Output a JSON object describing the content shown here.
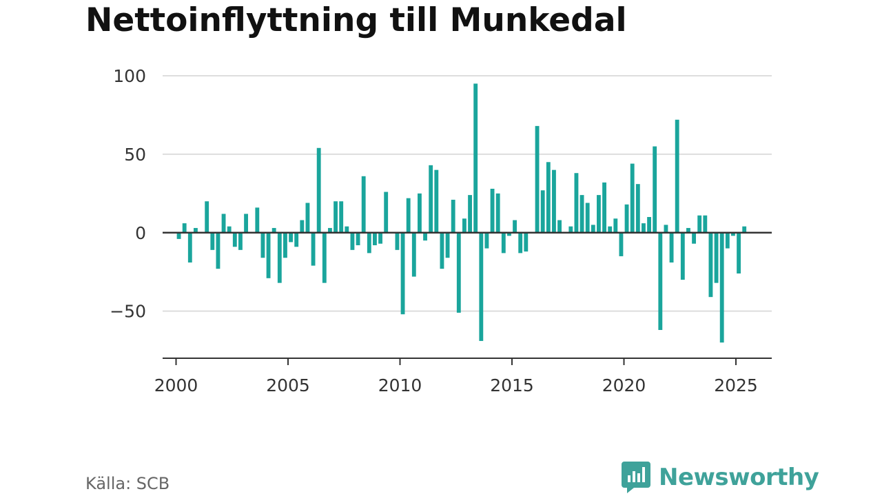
{
  "title": "Nettoinflyttning till Munkedal",
  "source": "Källa: SCB",
  "brand": {
    "name": "Newsworthy",
    "color": "#3fa29a"
  },
  "colors": {
    "bar": "#1aa59c",
    "grid": "#dddddd",
    "axis": "#333333",
    "text": "#333333"
  },
  "chart_data": {
    "type": "bar",
    "title": "Nettoinflyttning till Munkedal",
    "xlabel": "",
    "ylabel": "",
    "ylim": [
      -80,
      100
    ],
    "xlim": [
      1999.4,
      2026.6
    ],
    "grid": true,
    "legend": "none",
    "y_ticks": [
      -50,
      0,
      50,
      100
    ],
    "y_tick_labels": [
      "−50",
      "0",
      "50",
      "100"
    ],
    "x_ticks": [
      2000,
      2005,
      2010,
      2015,
      2020,
      2025
    ],
    "x_tick_labels": [
      "2000",
      "2005",
      "2010",
      "2015",
      "2020",
      "2025"
    ],
    "bar_frequency": "quarterly",
    "series": [
      {
        "x": [
          "2000-Q1",
          "2000-Q2",
          "2000-Q3",
          "2000-Q4",
          "2001-Q1",
          "2001-Q2",
          "2001-Q3",
          "2001-Q4",
          "2002-Q1",
          "2002-Q2",
          "2002-Q3",
          "2002-Q4",
          "2003-Q1",
          "2003-Q2",
          "2003-Q3",
          "2003-Q4",
          "2004-Q1",
          "2004-Q2",
          "2004-Q3",
          "2004-Q4",
          "2005-Q1",
          "2005-Q2",
          "2005-Q3",
          "2005-Q4",
          "2006-Q1",
          "2006-Q2",
          "2006-Q3",
          "2006-Q4",
          "2007-Q1",
          "2007-Q2",
          "2007-Q3",
          "2007-Q4",
          "2008-Q1",
          "2008-Q2",
          "2008-Q3",
          "2008-Q4",
          "2009-Q1",
          "2009-Q2",
          "2009-Q3",
          "2009-Q4",
          "2010-Q1",
          "2010-Q2",
          "2010-Q3",
          "2010-Q4",
          "2011-Q1",
          "2011-Q2",
          "2011-Q3",
          "2011-Q4",
          "2012-Q1",
          "2012-Q2",
          "2012-Q3",
          "2012-Q4",
          "2013-Q1",
          "2013-Q2",
          "2013-Q3",
          "2013-Q4",
          "2014-Q1",
          "2014-Q2",
          "2014-Q3",
          "2014-Q4",
          "2015-Q1",
          "2015-Q2",
          "2015-Q3",
          "2015-Q4",
          "2016-Q1",
          "2016-Q2",
          "2016-Q3",
          "2016-Q4",
          "2017-Q1",
          "2017-Q2",
          "2017-Q3",
          "2017-Q4",
          "2018-Q1",
          "2018-Q2",
          "2018-Q3",
          "2018-Q4",
          "2019-Q1",
          "2019-Q2",
          "2019-Q3",
          "2019-Q4",
          "2020-Q1",
          "2020-Q2",
          "2020-Q3",
          "2020-Q4",
          "2021-Q1",
          "2021-Q2",
          "2021-Q3",
          "2021-Q4",
          "2022-Q1",
          "2022-Q2",
          "2022-Q3",
          "2022-Q4",
          "2023-Q1",
          "2023-Q2",
          "2023-Q3",
          "2023-Q4",
          "2024-Q1",
          "2024-Q2",
          "2024-Q3",
          "2024-Q4",
          "2025-Q1",
          "2025-Q2"
        ],
        "values": [
          -4,
          6,
          -19,
          3,
          0,
          20,
          -11,
          -23,
          12,
          4,
          -9,
          -11,
          12,
          0,
          16,
          -16,
          -29,
          3,
          -32,
          -16,
          -6,
          -9,
          8,
          19,
          -21,
          54,
          -32,
          3,
          20,
          20,
          4,
          -11,
          -8,
          36,
          -13,
          -8,
          -7,
          26,
          0,
          -11,
          -52,
          22,
          -28,
          25,
          -5,
          43,
          40,
          -23,
          -16,
          21,
          -51,
          9,
          24,
          95,
          -69,
          -10,
          28,
          25,
          -13,
          -2,
          8,
          -13,
          -12,
          0,
          68,
          27,
          45,
          40,
          8,
          0,
          4,
          38,
          24,
          19,
          5,
          24,
          32,
          4,
          9,
          -15,
          18,
          44,
          31,
          6,
          10,
          55,
          -62,
          5,
          -19,
          72,
          -30,
          3,
          -7,
          11,
          11,
          -41,
          -32,
          -70,
          -10,
          -2,
          -26,
          4
        ]
      }
    ]
  }
}
